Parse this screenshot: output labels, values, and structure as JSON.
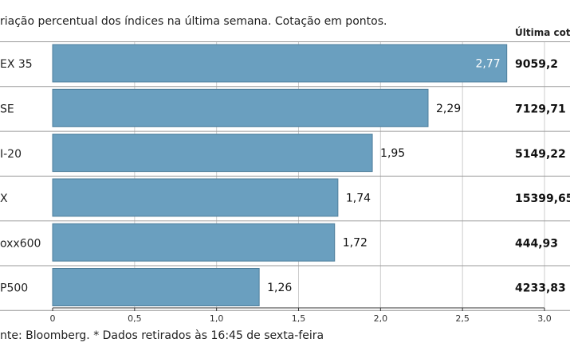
{
  "subtitle": "riação percentual dos índices na última semana. Cotação em pontos.",
  "column_header": "Última cotaç",
  "source": "nte: Bloomberg.  * Dados retirados às 16:45 de sexta-feira",
  "colors": {
    "bar": "#6a9fbf",
    "bar_stroke": "#4f7f9c",
    "grid": "#cccccc",
    "row_border": "#999999"
  },
  "chart_data": {
    "type": "bar",
    "orientation": "horizontal",
    "categories": [
      "EX 35",
      "SE",
      "I-20",
      "X",
      "oxx600",
      "P500"
    ],
    "values": [
      2.77,
      2.29,
      1.95,
      1.74,
      1.72,
      1.26
    ],
    "value_labels": [
      "2,77",
      "2,29",
      "1,95",
      "1,74",
      "1,72",
      "1,26"
    ],
    "last_quote": [
      "9059,2",
      "7129,71",
      "5149,22",
      "15399,65",
      "444,93",
      "4233,83"
    ],
    "xlim": [
      0,
      3.0
    ],
    "xticks": [
      0,
      0.5,
      1.0,
      1.5,
      2.0,
      2.5,
      3.0
    ],
    "xtick_labels": [
      "0",
      "0,5",
      "1,0",
      "1,5",
      "2,0",
      "2,5",
      "3,0"
    ],
    "grid": true
  }
}
